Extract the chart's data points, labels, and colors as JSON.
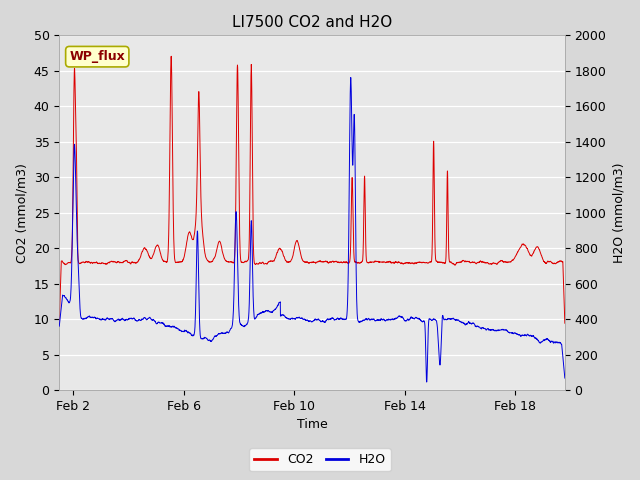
{
  "title": "LI7500 CO2 and H2O",
  "xlabel": "Time",
  "ylabel_left": "CO2 (mmol/m3)",
  "ylabel_right": "H2O (mmol/m3)",
  "annotation_text": "WP_flux",
  "xlim_days": [
    1.5,
    19.8
  ],
  "ylim_left": [
    0,
    50
  ],
  "ylim_right": [
    0,
    2000
  ],
  "yticks_left": [
    0,
    5,
    10,
    15,
    20,
    25,
    30,
    35,
    40,
    45,
    50
  ],
  "yticks_right": [
    0,
    200,
    400,
    600,
    800,
    1000,
    1200,
    1400,
    1600,
    1800,
    2000
  ],
  "xticks_days": [
    2,
    6,
    10,
    14,
    18
  ],
  "xtick_labels": [
    "Feb 2",
    "Feb 6",
    "Feb 10",
    "Feb 14",
    "Feb 18"
  ],
  "fig_bg_color": "#d8d8d8",
  "plot_bg_color": "#e8e8e8",
  "grid_color": "#ffffff",
  "co2_color": "#dd0000",
  "h2o_color": "#0000dd",
  "legend_co2": "CO2",
  "legend_h2o": "H2O",
  "title_fontsize": 11,
  "axis_label_fontsize": 9,
  "tick_fontsize": 9,
  "annot_fontsize": 9,
  "annot_color": "#8B0000",
  "annot_bg": "#ffffcc",
  "annot_edge": "#aaaa00"
}
